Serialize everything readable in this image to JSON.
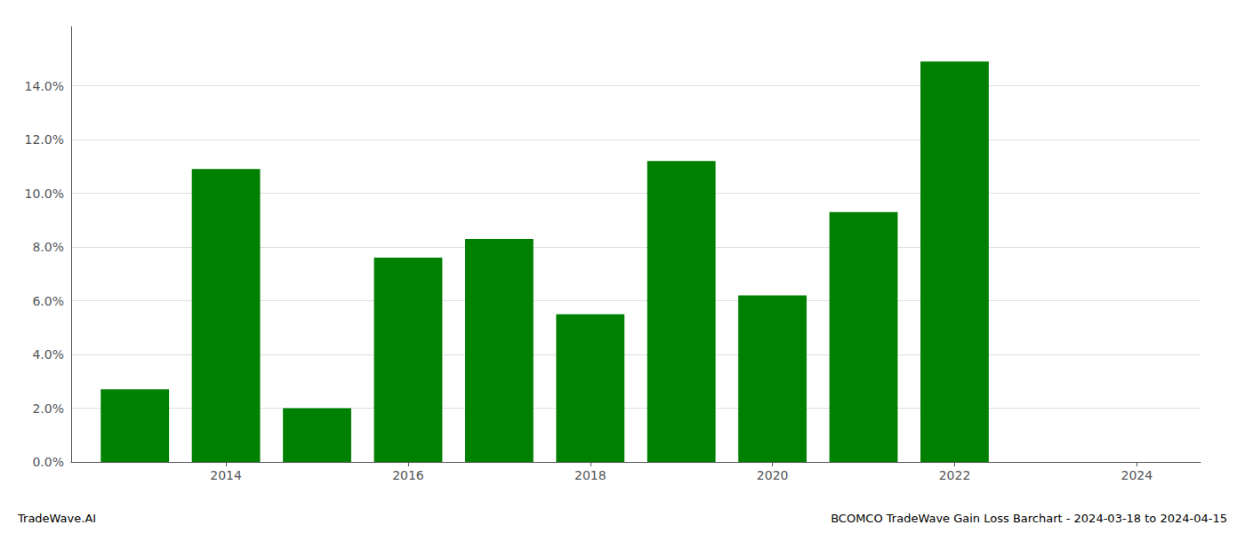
{
  "chart_data": {
    "type": "bar",
    "x": [
      2013,
      2014,
      2015,
      2016,
      2017,
      2018,
      2019,
      2020,
      2021,
      2022
    ],
    "values": [
      0.027,
      0.109,
      0.02,
      0.076,
      0.083,
      0.055,
      0.112,
      0.062,
      0.093,
      0.149
    ],
    "color": "#008000",
    "xlim": [
      2012.3,
      2024.7
    ],
    "xticks": [
      2014,
      2016,
      2018,
      2020,
      2022,
      2024
    ],
    "ylim": [
      0,
      0.162
    ],
    "yticks": [
      {
        "value": 0.0,
        "label": "0.0%"
      },
      {
        "value": 0.02,
        "label": "2.0%"
      },
      {
        "value": 0.04,
        "label": "4.0%"
      },
      {
        "value": 0.06,
        "label": "6.0%"
      },
      {
        "value": 0.08,
        "label": "8.0%"
      },
      {
        "value": 0.1,
        "label": "10.0%"
      },
      {
        "value": 0.12,
        "label": "12.0%"
      },
      {
        "value": 0.14,
        "label": "14.0%"
      }
    ],
    "grid": true,
    "annotations": [
      "TradeWave.AI",
      "BCOMCO TradeWave Gain Loss Barchart - 2024-03-18 to 2024-04-15"
    ]
  }
}
